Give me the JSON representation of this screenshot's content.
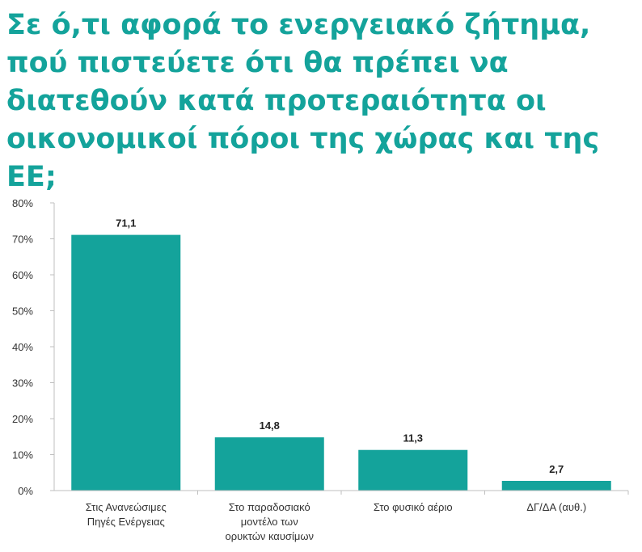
{
  "title": "Σε ό,τι αφορά το ενεργειακό ζήτημα, πού πιστεύετε ότι θα πρέπει να διατεθούν κατά προτεραιότητα οι οικονομικοί πόροι της χώρας και της ΕΕ;",
  "colors": {
    "bar": "#14a39b",
    "title": "#14a39b",
    "axis": "#bfbfbf"
  },
  "chart_data": {
    "type": "bar",
    "title": "Σε ό,τι αφορά το ενεργειακό ζήτημα, πού πιστεύετε ότι θα πρέπει να διατεθούν κατά προτεραιότητα οι οικονομικοί πόροι της χώρας και της ΕΕ;",
    "categories": [
      [
        "Στις Ανανεώσιμες",
        "Πηγές Ενέργειας"
      ],
      [
        "Στο παραδοσιακό",
        "μοντέλο των",
        "ορυκτών καυσίμων"
      ],
      [
        "Στο φυσικό αέριο"
      ],
      [
        "ΔΓ/ΔΑ (αυθ.)"
      ]
    ],
    "values": [
      71.1,
      14.8,
      11.3,
      2.7
    ],
    "data_labels": [
      "71,1",
      "14,8",
      "11,3",
      "2,7"
    ],
    "ylim": [
      0,
      80
    ],
    "yticks": [
      0,
      10,
      20,
      30,
      40,
      50,
      60,
      70,
      80
    ],
    "ytick_labels": [
      "0%",
      "10%",
      "20%",
      "30%",
      "40%",
      "50%",
      "60%",
      "70%",
      "80%"
    ],
    "xlabel": "",
    "ylabel": "",
    "grid": false,
    "legend": "none"
  }
}
